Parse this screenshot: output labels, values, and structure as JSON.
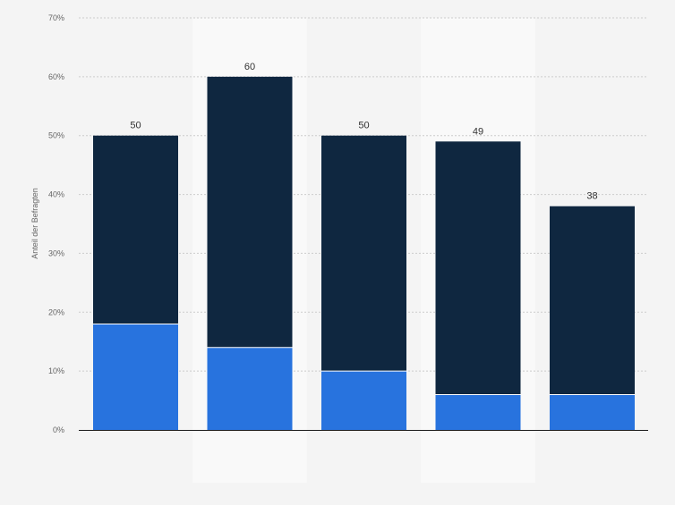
{
  "chart_data": {
    "type": "bar",
    "stacked": true,
    "ylabel": "Anteil der Befragten",
    "ylim": [
      0,
      70
    ],
    "yticks": [
      "0%",
      "10%",
      "20%",
      "30%",
      "40%",
      "50%",
      "60%",
      "70%"
    ],
    "grid": true,
    "categories": [
      "",
      "",
      "",
      "",
      ""
    ],
    "totals": [
      "50",
      "60",
      "50",
      "49",
      "38"
    ],
    "series": [
      {
        "values": [
          18,
          14,
          10,
          6,
          6
        ],
        "color": "#2873de"
      },
      {
        "values": [
          32,
          46,
          40,
          43,
          32
        ],
        "color": "#0f2740"
      }
    ]
  }
}
